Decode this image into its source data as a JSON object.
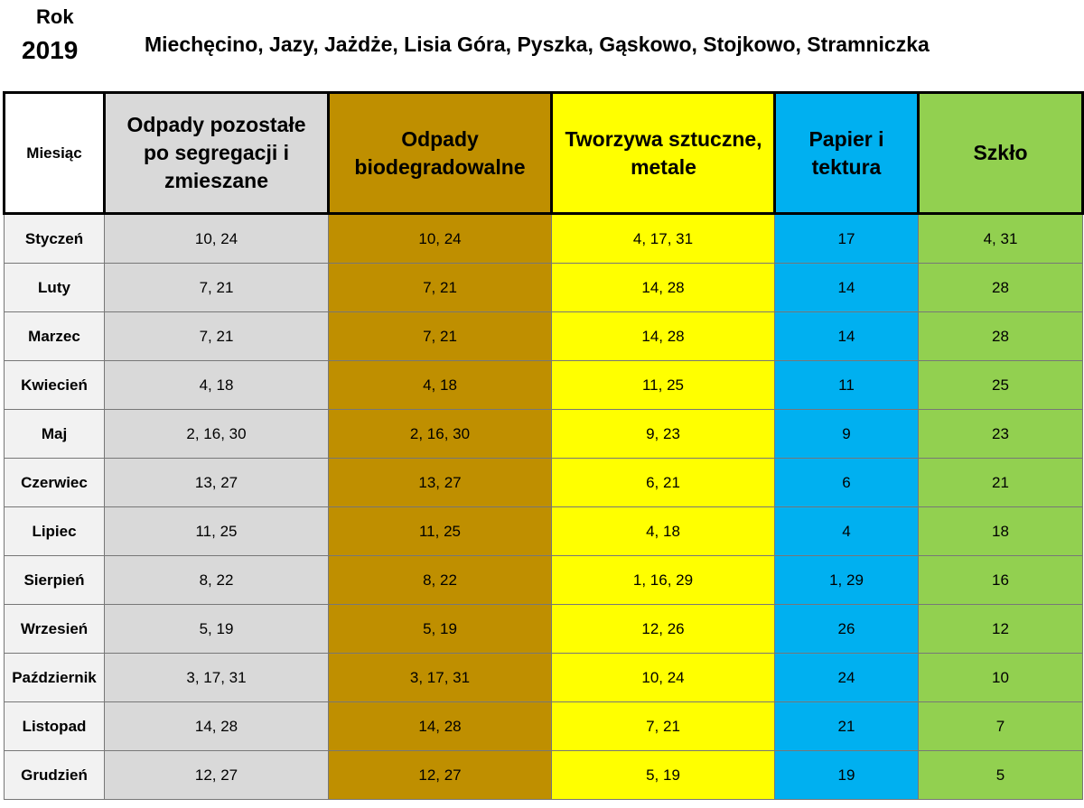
{
  "header": {
    "rok_label": "Rok",
    "year": "2019",
    "locations": "Miechęcino, Jazy, Jażdże, Lisia Góra, Pyszka, Gąskowo, Stojkowo, Stramniczka"
  },
  "colors": {
    "mixed": "#d9d9d9",
    "bio": "#bf8f00",
    "plastic": "#ffff00",
    "paper": "#00b0f0",
    "glass": "#92d050"
  },
  "columns": {
    "month": "Miesiąc",
    "mixed": "Odpady pozostałe po segregacji i zmieszane",
    "bio": "Odpady biodegradowalne",
    "plastic": "Tworzywa sztuczne, metale",
    "paper": "Papier i tektura",
    "glass": "Szkło"
  },
  "rows": [
    {
      "month": "Styczeń",
      "mixed": "10, 24",
      "bio": "10, 24",
      "plastic": "4, 17, 31",
      "paper": "17",
      "glass": "4, 31"
    },
    {
      "month": "Luty",
      "mixed": "7, 21",
      "bio": "7, 21",
      "plastic": "14, 28",
      "paper": "14",
      "glass": "28"
    },
    {
      "month": "Marzec",
      "mixed": "7, 21",
      "bio": "7, 21",
      "plastic": "14, 28",
      "paper": "14",
      "glass": "28"
    },
    {
      "month": "Kwiecień",
      "mixed": "4, 18",
      "bio": "4, 18",
      "plastic": "11, 25",
      "paper": "11",
      "glass": "25"
    },
    {
      "month": "Maj",
      "mixed": "2, 16, 30",
      "bio": "2, 16, 30",
      "plastic": "9, 23",
      "paper": "9",
      "glass": "23"
    },
    {
      "month": "Czerwiec",
      "mixed": "13, 27",
      "bio": "13, 27",
      "plastic": "6, 21",
      "paper": "6",
      "glass": "21"
    },
    {
      "month": "Lipiec",
      "mixed": "11, 25",
      "bio": "11, 25",
      "plastic": "4, 18",
      "paper": "4",
      "glass": "18"
    },
    {
      "month": "Sierpień",
      "mixed": "8, 22",
      "bio": "8, 22",
      "plastic": "1, 16, 29",
      "paper": "1, 29",
      "glass": "16"
    },
    {
      "month": "Wrzesień",
      "mixed": "5, 19",
      "bio": "5, 19",
      "plastic": "12, 26",
      "paper": "26",
      "glass": "12"
    },
    {
      "month": "Październik",
      "mixed": "3, 17, 31",
      "bio": "3, 17, 31",
      "plastic": "10, 24",
      "paper": "24",
      "glass": "10"
    },
    {
      "month": "Listopad",
      "mixed": "14, 28",
      "bio": "14, 28",
      "plastic": "7, 21",
      "paper": "21",
      "glass": "7"
    },
    {
      "month": "Grudzień",
      "mixed": "12, 27",
      "bio": "12, 27",
      "plastic": "5, 19",
      "paper": "19",
      "glass": "5"
    }
  ]
}
